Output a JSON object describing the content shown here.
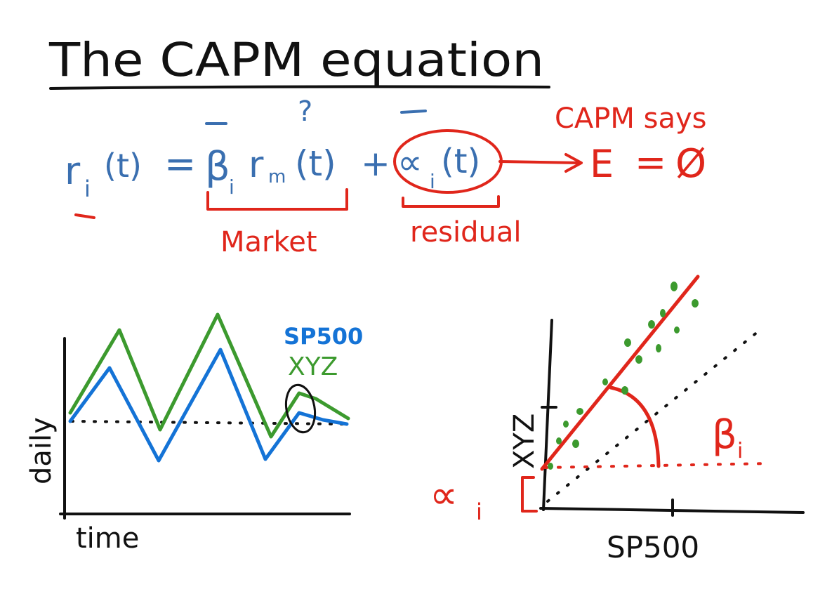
{
  "title": "The CAPM equation",
  "equation": {
    "lhs_r": "r",
    "lhs_sub": "i",
    "lhs_arg": "(t)",
    "equals": "=",
    "beta": "β",
    "beta_sub": "i",
    "rm_r": "r",
    "rm_sub": "m",
    "rm_arg": "(t)",
    "question_mark": "?",
    "plus": "+",
    "alpha": "∝",
    "alpha_sub": "i",
    "alpha_arg": "(t)"
  },
  "annotations": {
    "market_label": "Market",
    "residual_label": "residual",
    "capm_says": "CAPM says",
    "expectation_e": "E",
    "expectation_equals": "=",
    "expectation_zero": "Ø"
  },
  "left_chart": {
    "ylabel": "daily",
    "xlabel": "time",
    "legend": [
      "SP500",
      "XYZ"
    ],
    "colors": {
      "SP500": "#1473d6",
      "XYZ": "#3c9a2e"
    }
  },
  "right_chart": {
    "ylabel": "XYZ",
    "xlabel": "SP500",
    "beta_label": "β",
    "beta_sub": "i",
    "alpha_label": "∝",
    "alpha_sub": "i"
  },
  "colors": {
    "black_ink": "#111111",
    "blue_ink": "#3a6fb0",
    "red_ink": "#e0261b",
    "green_ink": "#3c9a2e"
  }
}
